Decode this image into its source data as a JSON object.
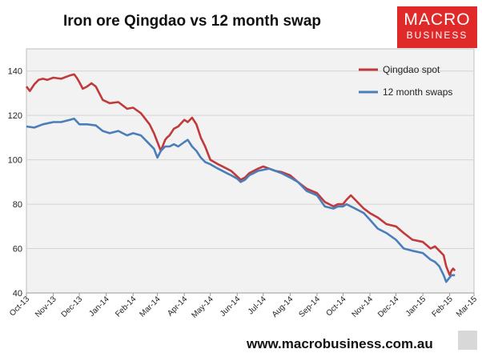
{
  "header": {
    "title": "Iron ore Qingdao vs 12 month swap",
    "logo_line1": "MACRO",
    "logo_line2": "BUSINESS"
  },
  "footer": {
    "url": "www.macrobusiness.com.au"
  },
  "chart_data": {
    "type": "line",
    "title": "Iron ore Qingdao vs 12 month swap",
    "xlabel": "",
    "ylabel": "",
    "ylim": [
      40,
      150
    ],
    "yticks": [
      40,
      60,
      80,
      100,
      120,
      140
    ],
    "xlim": [
      "2013-10-01",
      "2015-03-01"
    ],
    "xticks": [
      "Oct-13",
      "Nov-13",
      "Dec-13",
      "Jan-14",
      "Feb-14",
      "Mar-14",
      "Apr-14",
      "May-14",
      "Jun-14",
      "Jul-14",
      "Aug-14",
      "Sep-14",
      "Oct-14",
      "Nov-14",
      "Dec-14",
      "Jan-15",
      "Feb-15",
      "Mar-15"
    ],
    "grid": true,
    "legend_position": "top-right",
    "colors": {
      "Qingdao spot": "#c0393b",
      "12 month swaps": "#4a7ebb"
    },
    "series": [
      {
        "name": "Qingdao spot",
        "x": [
          "2013-10-01",
          "2013-10-05",
          "2013-10-10",
          "2013-10-15",
          "2013-10-20",
          "2013-10-25",
          "2013-11-01",
          "2013-11-10",
          "2013-11-20",
          "2013-11-25",
          "2013-11-28",
          "2013-12-01",
          "2013-12-05",
          "2013-12-10",
          "2013-12-15",
          "2013-12-20",
          "2013-12-28",
          "2014-01-05",
          "2014-01-15",
          "2014-01-25",
          "2014-02-01",
          "2014-02-10",
          "2014-02-20",
          "2014-02-25",
          "2014-03-01",
          "2014-03-05",
          "2014-03-10",
          "2014-03-12",
          "2014-03-15",
          "2014-03-20",
          "2014-03-25",
          "2014-04-01",
          "2014-04-05",
          "2014-04-10",
          "2014-04-15",
          "2014-04-20",
          "2014-04-25",
          "2014-05-01",
          "2014-05-10",
          "2014-05-20",
          "2014-05-25",
          "2014-06-01",
          "2014-06-05",
          "2014-06-10",
          "2014-06-15",
          "2014-06-20",
          "2014-06-25",
          "2014-07-01",
          "2014-07-08",
          "2014-07-15",
          "2014-07-22",
          "2014-08-01",
          "2014-08-10",
          "2014-08-20",
          "2014-09-01",
          "2014-09-10",
          "2014-09-20",
          "2014-09-25",
          "2014-10-01",
          "2014-10-05",
          "2014-10-10",
          "2014-10-15",
          "2014-10-20",
          "2014-10-25",
          "2014-11-01",
          "2014-11-10",
          "2014-11-20",
          "2014-12-01",
          "2014-12-10",
          "2014-12-20",
          "2015-01-01",
          "2015-01-10",
          "2015-01-15",
          "2015-01-20",
          "2015-01-25",
          "2015-01-28",
          "2015-02-01",
          "2015-02-03",
          "2015-02-05",
          "2015-02-07"
        ],
        "values": [
          133,
          131,
          134,
          136,
          136.5,
          136,
          137,
          136.5,
          138,
          138.5,
          137,
          135,
          132,
          133,
          134.5,
          133,
          127,
          125.5,
          126,
          123,
          123.5,
          121,
          116,
          112,
          108,
          104,
          109,
          110,
          111,
          114,
          115,
          118,
          117,
          119,
          116,
          110,
          106,
          100,
          98,
          96,
          95,
          92.5,
          91,
          92,
          94,
          95,
          96,
          97,
          96,
          95,
          94.5,
          93,
          90,
          87,
          85,
          81,
          79,
          80,
          80,
          82,
          84,
          82,
          80,
          78,
          76,
          74,
          71,
          70,
          67,
          64,
          63,
          60,
          61,
          59,
          57,
          52,
          48,
          50,
          51,
          50
        ],
        "labels": []
      },
      {
        "name": "12 month swaps",
        "x": [
          "2013-10-01",
          "2013-10-10",
          "2013-10-20",
          "2013-11-01",
          "2013-11-10",
          "2013-11-20",
          "2013-11-25",
          "2013-12-01",
          "2013-12-10",
          "2013-12-20",
          "2013-12-28",
          "2014-01-05",
          "2014-01-15",
          "2014-01-25",
          "2014-02-01",
          "2014-02-10",
          "2014-02-20",
          "2014-02-25",
          "2014-03-01",
          "2014-03-05",
          "2014-03-10",
          "2014-03-15",
          "2014-03-20",
          "2014-03-25",
          "2014-04-01",
          "2014-04-05",
          "2014-04-10",
          "2014-04-15",
          "2014-04-20",
          "2014-04-25",
          "2014-05-01",
          "2014-05-10",
          "2014-05-20",
          "2014-05-25",
          "2014-06-01",
          "2014-06-05",
          "2014-06-10",
          "2014-06-15",
          "2014-06-20",
          "2014-06-25",
          "2014-07-01",
          "2014-07-08",
          "2014-07-15",
          "2014-07-22",
          "2014-08-01",
          "2014-08-10",
          "2014-08-20",
          "2014-09-01",
          "2014-09-10",
          "2014-09-20",
          "2014-09-25",
          "2014-10-01",
          "2014-10-05",
          "2014-10-10",
          "2014-10-15",
          "2014-10-20",
          "2014-10-25",
          "2014-11-01",
          "2014-11-10",
          "2014-11-20",
          "2014-12-01",
          "2014-12-10",
          "2014-12-20",
          "2015-01-01",
          "2015-01-10",
          "2015-01-15",
          "2015-01-20",
          "2015-01-25",
          "2015-01-28",
          "2015-02-01",
          "2015-02-03",
          "2015-02-05",
          "2015-02-07"
        ],
        "values": [
          115,
          114.5,
          116,
          117,
          117,
          118,
          118.5,
          116,
          116,
          115.5,
          113,
          112,
          113,
          111,
          112,
          111,
          107,
          105,
          101,
          104,
          106,
          106,
          107,
          106,
          108,
          109,
          106,
          104,
          101,
          99,
          98,
          96,
          94,
          93,
          91.5,
          90,
          91,
          93,
          94,
          95,
          95.5,
          96,
          95,
          94,
          92,
          90,
          86,
          84,
          79,
          78,
          79,
          79,
          80,
          79,
          78,
          77,
          76,
          73,
          69,
          67,
          64,
          60,
          59,
          58,
          55,
          54,
          52,
          48,
          45,
          47,
          48,
          48,
          48
        ],
        "labels": []
      }
    ]
  }
}
